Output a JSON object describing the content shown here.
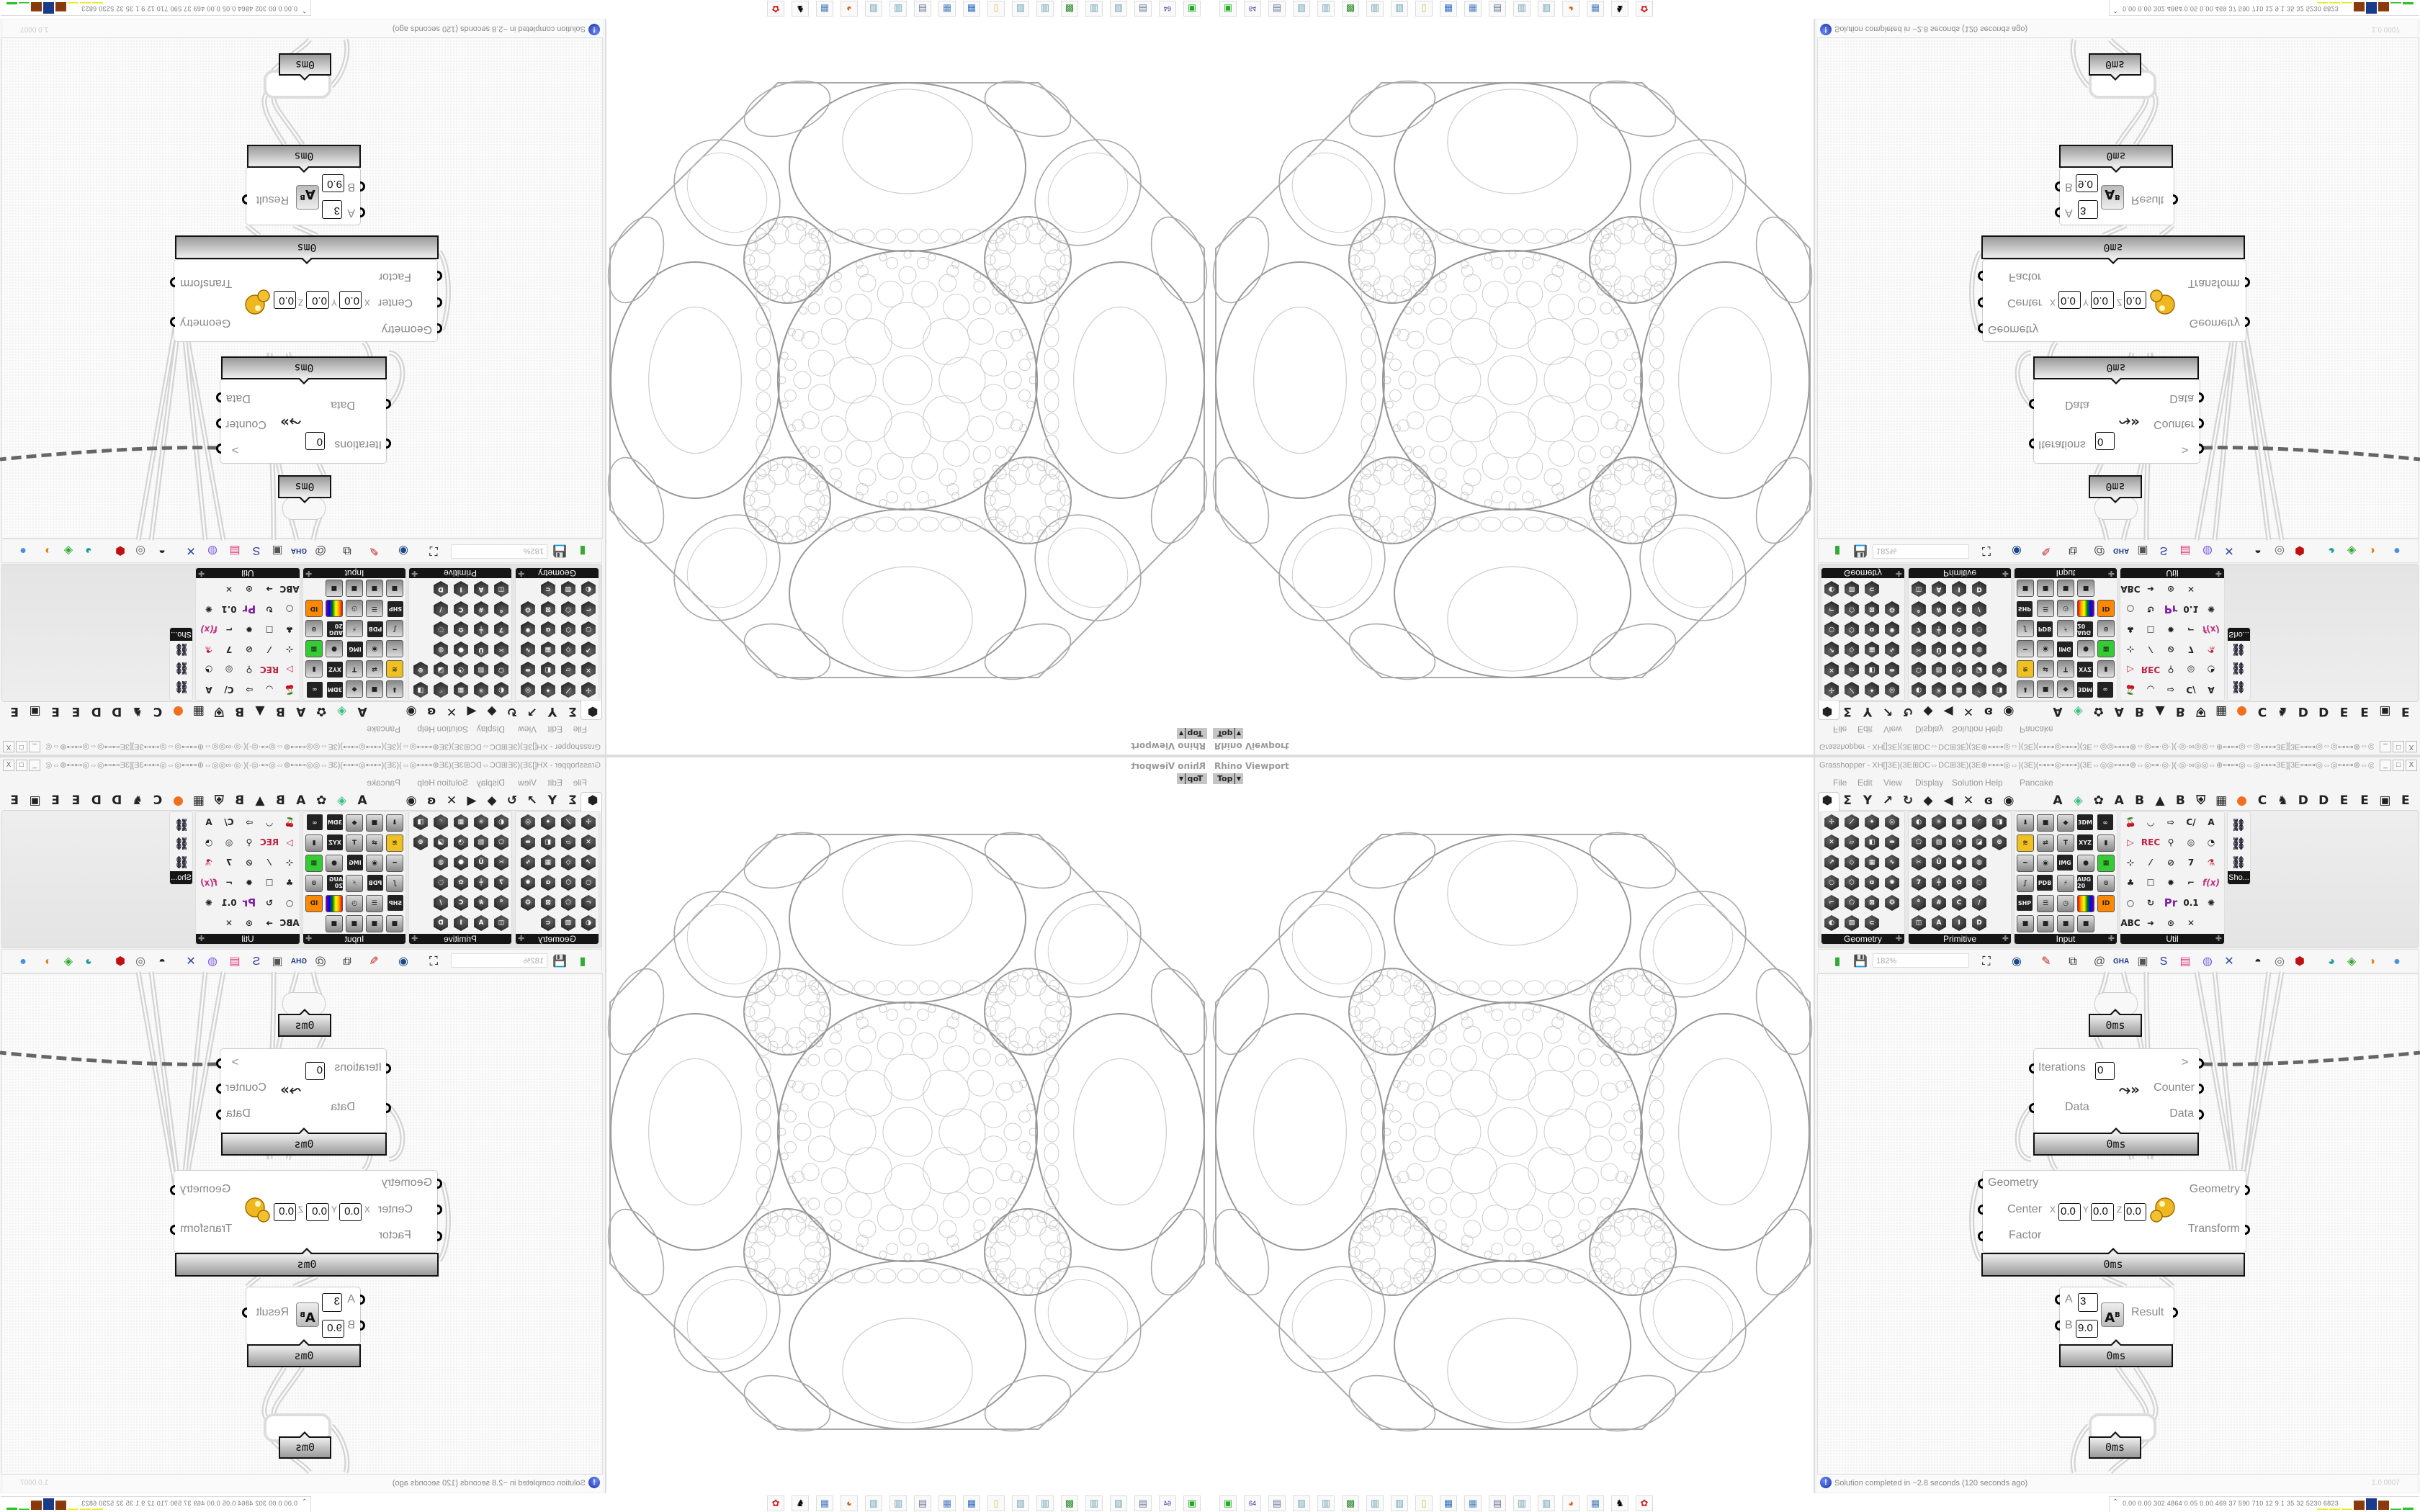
{
  "rhino": {
    "title": "Rhino Viewport",
    "view": "Top"
  },
  "grasshopper": {
    "title": "Grasshopper - XH[]3E)(3E⊞DC⇔DC⊞3E)(3E⊕⊶⊶◎⇔)(3E)(⊶⊶◎⊶⊶)(3E⇔◎◎⊶⊶⊕⇔◎⊶·◎·)(·◎·∞◎◎⇔⊕⊶⊶◎⇔◎⊶⊶3E][3E⊶⊶◎⇔◎⊶⊶⊕⇔◎⊶·◎·)(·◎·∞◎◎⇔⊕⊶⊶◎⇔)(3E)(⊶⊶◎…",
    "window_buttons": {
      "minimize": "_",
      "maximize": "□",
      "close": "X"
    },
    "menu": [
      "File",
      "Edit",
      "View",
      "Display",
      "Solution",
      "Help",
      "Pancake"
    ],
    "tabs": [
      "⬢",
      "Σ",
      "Y",
      "↗",
      "↻",
      "◆",
      "◀",
      "✕",
      "ɞ",
      "◉",
      "A",
      "◈",
      "✿",
      "A",
      "B",
      "▲",
      "B",
      "⛨",
      "▦",
      "●",
      "C",
      "♞",
      "D",
      "D",
      "E",
      "E",
      "▣",
      "E"
    ],
    "panels": [
      {
        "label": "Geometry"
      },
      {
        "label": "Primitive"
      },
      {
        "label": "Input",
        "icon_labels": [
          "3DM",
          "XYZ",
          "IMG",
          "PDB",
          "SHP",
          "AUG 20",
          "ID"
        ]
      },
      {
        "label": "Util",
        "icon_labels": [
          "REC",
          "f(x)",
          "Pr",
          "ABC"
        ]
      },
      {
        "label": "Sho..."
      }
    ],
    "zoom": "182%",
    "toolbar_icons": [
      "new-document",
      "save",
      "zoom-extents",
      "preview-eye",
      "sketch",
      "cluster",
      "mail",
      "gha",
      "window",
      "search",
      "package",
      "bulb",
      "wires",
      "draw-mode",
      "wireframe",
      "shaded",
      "teal-shape",
      "green-shape",
      "orange-sphere",
      "blue-sphere"
    ]
  },
  "canvas": {
    "timing": "0ms",
    "loop": {
      "iterations_label": "Iterations",
      "iterations_value": "0",
      "data_in": "Data",
      "gt": ">",
      "counter": "Counter",
      "data_out": "Data"
    },
    "scale": {
      "geometry_in": "Geometry",
      "center": "Center",
      "x_label": "X",
      "y_label": "Y",
      "z_label": "Z",
      "x": "0.0",
      "y": "0.0",
      "z": "0.0",
      "factor": "Factor",
      "geometry_out": "Geometry",
      "transform": "Transform"
    },
    "power": {
      "a_label": "A",
      "a": "3",
      "b_label": "B",
      "b": "9.0",
      "result": "Result"
    }
  },
  "status": {
    "message": "Solution completed in ~2.8 seconds (120 seconds ago)",
    "version": "1.0.0007"
  },
  "perf": {
    "values": "0.00 0.00 302 4864 0.05 0.00 469 37 590 710 12 9.1 35 32 5230 6823",
    "bar_colors": [
      "#e8e820",
      "#e8e820",
      "#e8e820",
      "#8a3a0a",
      "#1a3a8a",
      "#8a3a0a",
      "#30c030",
      "#30c030"
    ]
  },
  "taskbar": {
    "icons": [
      "drive",
      "floppy-64",
      "scroll",
      "notepad",
      "notepad",
      "monitor",
      "notepad",
      "notepad",
      "folder",
      "control-panel",
      "calculator",
      "scroll",
      "notepad",
      "notepad",
      "firefox",
      "calculator",
      "inkscape",
      "red-app"
    ]
  }
}
